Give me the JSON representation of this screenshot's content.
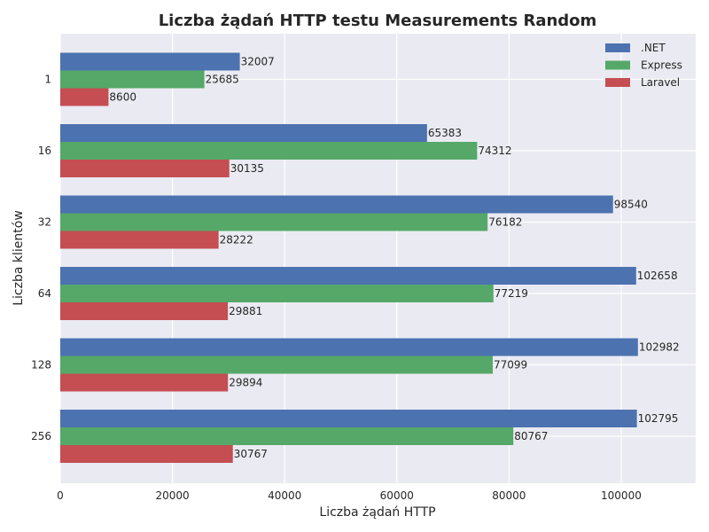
{
  "chart_data": {
    "type": "bar",
    "orientation": "horizontal",
    "title": "Liczba żądań HTTP testu Measurements Random",
    "xlabel": "Liczba żądań HTTP",
    "ylabel": "Liczba klientów",
    "categories": [
      "1",
      "16",
      "32",
      "64",
      "128",
      "256"
    ],
    "series": [
      {
        "name": ".NET",
        "color": "#4c72b0",
        "values": [
          32007,
          65383,
          98540,
          102658,
          102982,
          102795
        ]
      },
      {
        "name": "Express",
        "color": "#55a868",
        "values": [
          25685,
          74312,
          76182,
          77219,
          77099,
          80767
        ]
      },
      {
        "name": "Laravel",
        "color": "#c44e52",
        "values": [
          8600,
          30135,
          28222,
          29881,
          29894,
          30767
        ]
      }
    ],
    "xlim": [
      0,
      113280
    ],
    "xticks": [
      0,
      20000,
      40000,
      60000,
      80000,
      100000
    ],
    "xtick_labels": [
      "0",
      "20000",
      "40000",
      "60000",
      "80000",
      "100000"
    ],
    "grid": true,
    "legend_position": "top-right",
    "background_color": "#eaeaf2"
  }
}
